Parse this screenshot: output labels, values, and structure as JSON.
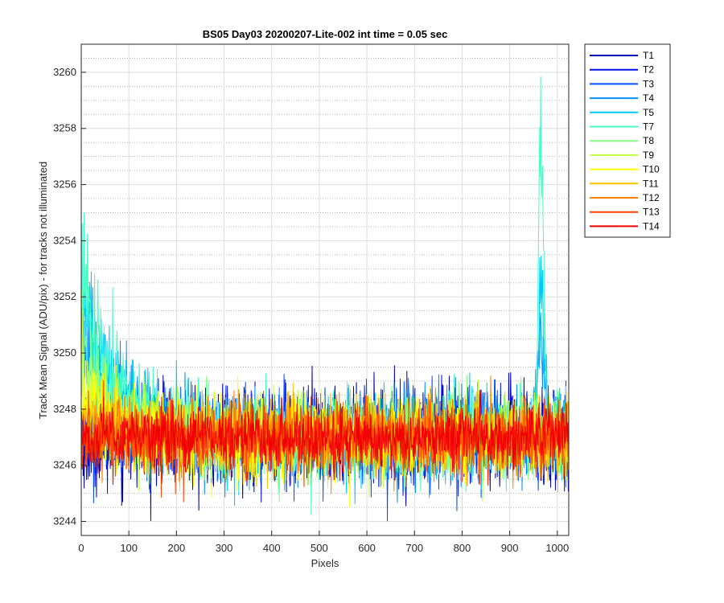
{
  "chart_data": {
    "type": "line",
    "title": "BS05 Day03 20200207-Lite-002 int time = 0.05 sec",
    "xlabel": "Pixels",
    "ylabel": "Track Mean Signal (ADU/pix) - for tracks not illuminated",
    "xlim": [
      0,
      1024
    ],
    "ylim": [
      3243.5,
      3261
    ],
    "xticks": [
      0,
      100,
      200,
      300,
      400,
      500,
      600,
      700,
      800,
      900,
      1000
    ],
    "xtick_labels": [
      "0",
      "100",
      "200",
      "300",
      "400",
      "500",
      "600",
      "700",
      "800",
      "900",
      "1000"
    ],
    "yticks": [
      3244,
      3246,
      3248,
      3250,
      3252,
      3254,
      3256,
      3258,
      3260
    ],
    "ytick_labels": [
      "3244",
      "3246",
      "3248",
      "3250",
      "3252",
      "3254",
      "3256",
      "3258",
      "3260"
    ],
    "grid": "major and minor",
    "legend_position": "outside-right",
    "n_points_per_series": 1024,
    "series": [
      {
        "name": "T1",
        "color": "#0000b3",
        "baseline": 3247.0,
        "noise": 0.85,
        "features": []
      },
      {
        "name": "T2",
        "color": "#0010e6",
        "baseline": 3247.0,
        "noise": 0.75,
        "features": []
      },
      {
        "name": "T3",
        "color": "#0050ff",
        "baseline": 3247.0,
        "noise": 0.75,
        "features": []
      },
      {
        "name": "T4",
        "color": "#0090ff",
        "baseline": 3247.0,
        "noise": 0.75,
        "features": [
          {
            "kind": "decay",
            "amplitude": 4.0,
            "tau": 70
          },
          {
            "kind": "spike",
            "center": 966,
            "width": 10,
            "amplitude": 4.5
          }
        ]
      },
      {
        "name": "T5",
        "color": "#00c8ff",
        "baseline": 3247.0,
        "noise": 0.75,
        "features": [
          {
            "kind": "decay",
            "amplitude": 4.5,
            "tau": 75
          },
          {
            "kind": "spike",
            "center": 966,
            "width": 10,
            "amplitude": 6.0
          }
        ]
      },
      {
        "name": "T7",
        "color": "#40ffc0",
        "baseline": 3247.0,
        "noise": 0.75,
        "features": [
          {
            "kind": "decay",
            "amplitude": 5.5,
            "tau": 80
          },
          {
            "kind": "spike",
            "center": 966,
            "width": 8,
            "amplitude": 13.0
          }
        ]
      },
      {
        "name": "T8",
        "color": "#80ff80",
        "baseline": 3247.0,
        "noise": 0.7,
        "features": [
          {
            "kind": "decay",
            "amplitude": 2.8,
            "tau": 70
          }
        ]
      },
      {
        "name": "T9",
        "color": "#c0ff40",
        "baseline": 3247.0,
        "noise": 0.7,
        "features": [
          {
            "kind": "decay",
            "amplitude": 2.0,
            "tau": 65
          }
        ]
      },
      {
        "name": "T10",
        "color": "#ffff00",
        "baseline": 3247.0,
        "noise": 0.7,
        "features": [
          {
            "kind": "decay",
            "amplitude": 1.2,
            "tau": 60
          }
        ]
      },
      {
        "name": "T11",
        "color": "#ffc000",
        "baseline": 3247.0,
        "noise": 0.7,
        "features": [
          {
            "kind": "decay",
            "amplitude": 0.8,
            "tau": 60
          }
        ]
      },
      {
        "name": "T12",
        "color": "#ff8000",
        "baseline": 3247.0,
        "noise": 0.65,
        "features": []
      },
      {
        "name": "T13",
        "color": "#ff4000",
        "baseline": 3247.0,
        "noise": 0.6,
        "features": []
      },
      {
        "name": "T14",
        "color": "#f00000",
        "baseline": 3247.0,
        "noise": 0.55,
        "features": []
      }
    ]
  }
}
